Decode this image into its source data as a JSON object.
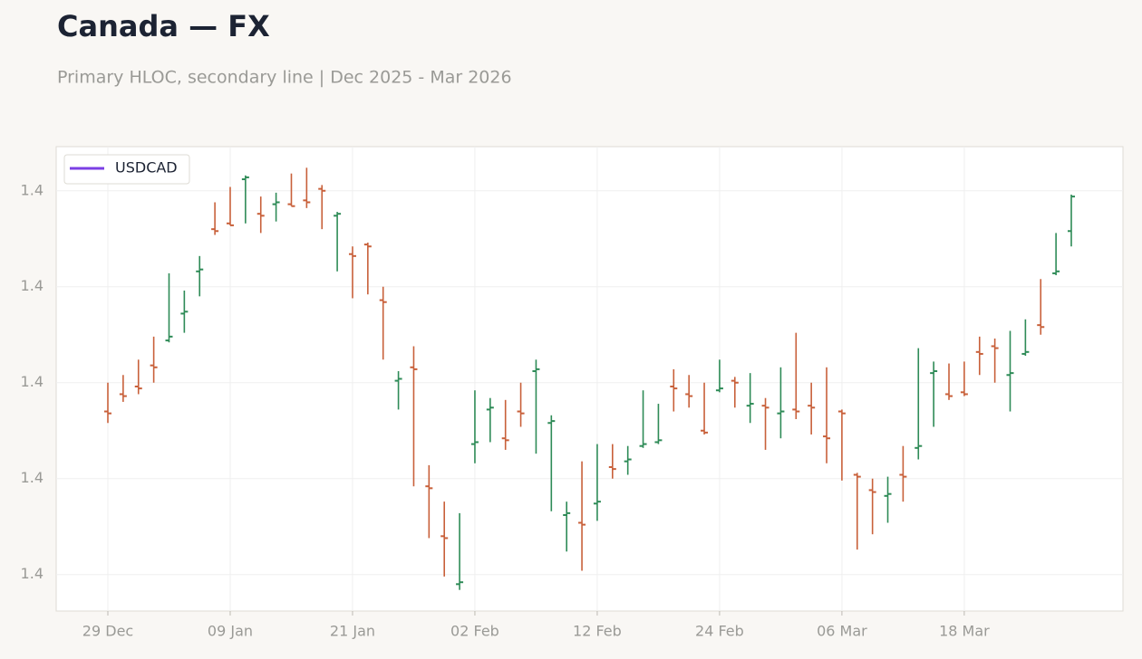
{
  "chart_data": {
    "type": "ohlc",
    "title": "Canada — FX",
    "subtitle": "Primary HLOC, secondary line | Dec 2025 - Mar 2026",
    "categories": [
      "29 Dec",
      null,
      null,
      null,
      null,
      null,
      null,
      null,
      "09 Jan",
      null,
      null,
      null,
      null,
      null,
      null,
      null,
      "21 Jan",
      null,
      null,
      null,
      null,
      null,
      null,
      null,
      "02 Feb",
      null,
      null,
      null,
      null,
      null,
      null,
      null,
      "12 Feb",
      null,
      null,
      null,
      null,
      null,
      null,
      null,
      "24 Feb",
      null,
      null,
      null,
      null,
      null,
      null,
      null,
      "06 Mar",
      null,
      null,
      null,
      null,
      null,
      null,
      null,
      "18 Mar",
      null,
      null,
      null,
      null,
      null,
      null,
      null
    ],
    "series": [
      {
        "name": "USDCAD",
        "color": "#7b3fe4",
        "open": [
          1.3885,
          1.3894,
          1.3898,
          1.3909,
          1.3922,
          1.3936,
          1.3958,
          1.398,
          1.3983,
          1.4006,
          1.3988,
          1.3993,
          1.3993,
          1.3995,
          1.4001,
          1.3987,
          1.3967,
          1.3972,
          1.3943,
          1.3901,
          1.3908,
          1.3846,
          1.382,
          1.3795,
          1.3868,
          1.3886,
          1.3871,
          1.3885,
          1.3906,
          1.3879,
          1.3831,
          1.3827,
          1.3837,
          1.3856,
          1.3859,
          1.3867,
          1.3869,
          1.3898,
          1.3894,
          1.3875,
          1.3896,
          1.3901,
          1.3888,
          1.3888,
          1.3884,
          1.3886,
          1.3888,
          1.3872,
          1.3885,
          1.3852,
          1.3844,
          1.3841,
          1.3852,
          1.3866,
          1.3905,
          1.3894,
          1.3895,
          1.3916,
          1.3919,
          1.3904,
          1.3915,
          1.393,
          1.3957,
          1.3979
        ],
        "high": [
          1.39,
          1.3904,
          1.3912,
          1.3924,
          1.3957,
          1.3948,
          1.3966,
          1.3994,
          1.4002,
          1.4008,
          1.3997,
          1.3999,
          1.4009,
          1.4012,
          1.4003,
          1.3989,
          1.3971,
          1.3973,
          1.395,
          1.3906,
          1.3919,
          1.3857,
          1.3838,
          1.3832,
          1.3896,
          1.3892,
          1.3891,
          1.39,
          1.3912,
          1.3883,
          1.3838,
          1.3859,
          1.3868,
          1.3868,
          1.3867,
          1.3896,
          1.3889,
          1.3907,
          1.3904,
          1.39,
          1.3912,
          1.3903,
          1.3905,
          1.3892,
          1.3908,
          1.3926,
          1.39,
          1.3908,
          1.3886,
          1.3853,
          1.385,
          1.3851,
          1.3867,
          1.3918,
          1.3911,
          1.391,
          1.3911,
          1.3924,
          1.3923,
          1.3927,
          1.3933,
          1.3954,
          1.3978,
          1.3998
        ],
        "low": [
          1.3879,
          1.389,
          1.3894,
          1.39,
          1.3921,
          1.3926,
          1.3945,
          1.3977,
          1.3982,
          1.3983,
          1.3978,
          1.3984,
          1.3992,
          1.3991,
          1.398,
          1.3958,
          1.3944,
          1.3946,
          1.3912,
          1.3886,
          1.3846,
          1.3819,
          1.3799,
          1.3792,
          1.3858,
          1.3869,
          1.3865,
          1.3877,
          1.3863,
          1.3833,
          1.3812,
          1.3802,
          1.3828,
          1.385,
          1.3852,
          1.3866,
          1.3868,
          1.3885,
          1.3887,
          1.3873,
          1.3895,
          1.3887,
          1.3879,
          1.3865,
          1.3871,
          1.3881,
          1.3873,
          1.3858,
          1.3849,
          1.3813,
          1.3821,
          1.3827,
          1.3838,
          1.386,
          1.3877,
          1.3891,
          1.3893,
          1.3904,
          1.39,
          1.3885,
          1.3914,
          1.3925,
          1.3956,
          1.3971
        ],
        "close": [
          1.3884,
          1.3893,
          1.3897,
          1.3908,
          1.3924,
          1.3937,
          1.3959,
          1.3979,
          1.3982,
          1.4007,
          1.3987,
          1.3994,
          1.3992,
          1.3994,
          1.4,
          1.3988,
          1.3966,
          1.3971,
          1.3942,
          1.3902,
          1.3907,
          1.3845,
          1.3819,
          1.3796,
          1.3869,
          1.3887,
          1.387,
          1.3884,
          1.3907,
          1.388,
          1.3832,
          1.3826,
          1.3838,
          1.3855,
          1.386,
          1.3868,
          1.387,
          1.3897,
          1.3893,
          1.3874,
          1.3897,
          1.39,
          1.3889,
          1.3887,
          1.3885,
          1.3885,
          1.3887,
          1.3871,
          1.3884,
          1.3851,
          1.3843,
          1.3842,
          1.3851,
          1.3867,
          1.3906,
          1.3893,
          1.3894,
          1.3915,
          1.3918,
          1.3905,
          1.3916,
          1.3929,
          1.3958,
          1.3997
        ]
      }
    ],
    "up_color": "#2e8b57",
    "down_color": "#c8603a",
    "ylim": [
      1.3781,
      1.4023
    ],
    "yticks": [
      {
        "value": 1.38,
        "label": "1.4"
      },
      {
        "value": 1.385,
        "label": "1.4"
      },
      {
        "value": 1.39,
        "label": "1.4"
      },
      {
        "value": 1.395,
        "label": "1.4"
      },
      {
        "value": 1.4,
        "label": "1.4"
      }
    ],
    "grid": true,
    "legend": "upper left"
  }
}
